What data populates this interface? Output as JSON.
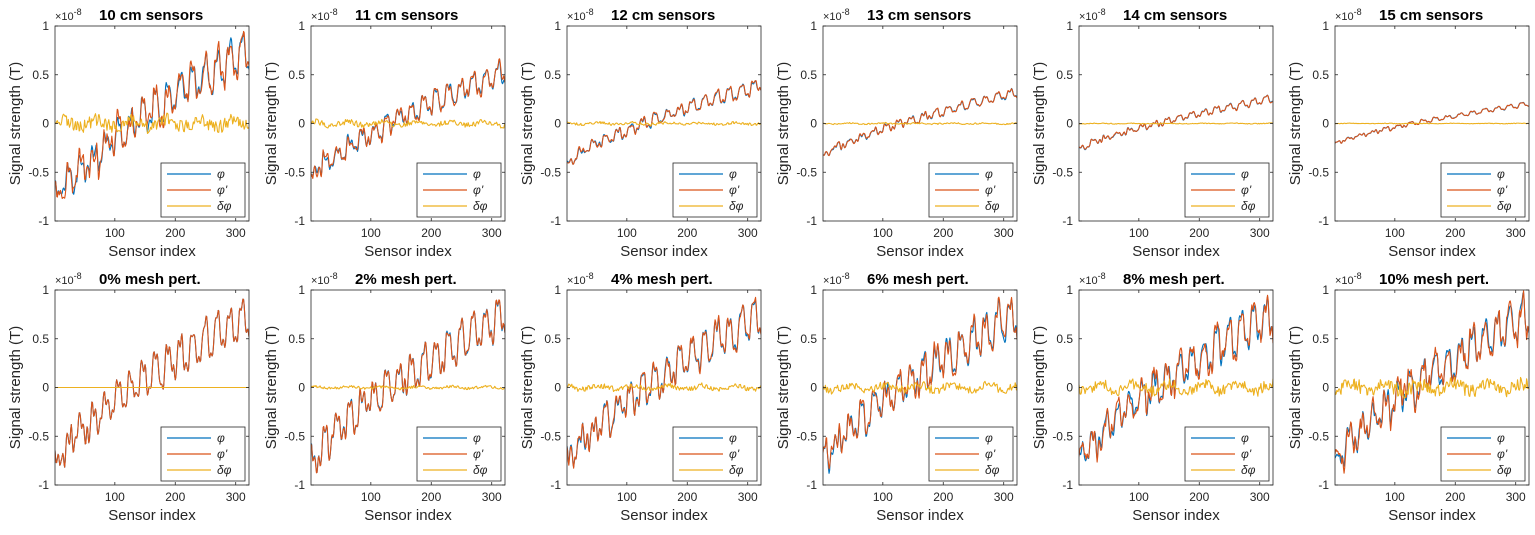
{
  "figure": {
    "x_label": "Sensor index",
    "y_label": "Signal strength (T)",
    "y_multiplier": "×10",
    "y_multiplier_exp": "-8",
    "series_names": [
      "φ",
      "φ'",
      "δφ"
    ],
    "series_colors": [
      "#0072BD",
      "#D95319",
      "#EDB120"
    ]
  },
  "chart_data": [
    {
      "type": "line",
      "title": "10 cm sensors",
      "xlabel": "Sensor index",
      "ylabel": "Signal strength (T)",
      "xlim": [
        1,
        322
      ],
      "ylim": [
        -1,
        1
      ],
      "xticks": [
        100,
        200,
        300
      ],
      "yticks": [
        -1,
        -0.5,
        0,
        0.5,
        1
      ],
      "yticklabels": [
        "-1",
        "-0.5",
        "0",
        "0.5",
        "1"
      ],
      "legend": [
        "φ",
        "φ'",
        "δφ"
      ],
      "legend_position": "lower-right",
      "signal_amplitude": 0.85,
      "oscillation_amplitude": 0.17,
      "residual_amplitude": 0.09
    },
    {
      "type": "line",
      "title": "11 cm sensors",
      "xlabel": "Sensor index",
      "ylabel": "Signal strength (T)",
      "xlim": [
        1,
        322
      ],
      "ylim": [
        -1,
        1
      ],
      "xticks": [
        100,
        200,
        300
      ],
      "yticks": [
        -1,
        -0.5,
        0,
        0.5,
        1
      ],
      "yticklabels": [
        "-1",
        "-0.5",
        "0",
        "0.5",
        "1"
      ],
      "legend": [
        "φ",
        "φ'",
        "δφ"
      ],
      "legend_position": "lower-right",
      "signal_amplitude": 0.6,
      "oscillation_amplitude": 0.1,
      "residual_amplitude": 0.04
    },
    {
      "type": "line",
      "title": "12 cm sensors",
      "xlabel": "Sensor index",
      "ylabel": "Signal strength (T)",
      "xlim": [
        1,
        322
      ],
      "ylim": [
        -1,
        1
      ],
      "xticks": [
        100,
        200,
        300
      ],
      "yticks": [
        -1,
        -0.5,
        0,
        0.5,
        1
      ],
      "yticklabels": [
        "-1",
        "-0.5",
        "0",
        "0.5",
        "1"
      ],
      "legend": [
        "φ",
        "φ'",
        "δφ"
      ],
      "legend_position": "lower-right",
      "signal_amplitude": 0.45,
      "oscillation_amplitude": 0.06,
      "residual_amplitude": 0.02
    },
    {
      "type": "line",
      "title": "13 cm sensors",
      "xlabel": "Sensor index",
      "ylabel": "Signal strength (T)",
      "xlim": [
        1,
        322
      ],
      "ylim": [
        -1,
        1
      ],
      "xticks": [
        100,
        200,
        300
      ],
      "yticks": [
        -1,
        -0.5,
        0,
        0.5,
        1
      ],
      "yticklabels": [
        "-1",
        "-0.5",
        "0",
        "0.5",
        "1"
      ],
      "legend": [
        "φ",
        "φ'",
        "δφ"
      ],
      "legend_position": "lower-right",
      "signal_amplitude": 0.36,
      "oscillation_amplitude": 0.04,
      "residual_amplitude": 0.01
    },
    {
      "type": "line",
      "title": "14 cm sensors",
      "xlabel": "Sensor index",
      "ylabel": "Signal strength (T)",
      "xlim": [
        1,
        322
      ],
      "ylim": [
        -1,
        1
      ],
      "xticks": [
        100,
        200,
        300
      ],
      "yticks": [
        -1,
        -0.5,
        0,
        0.5,
        1
      ],
      "yticklabels": [
        "-1",
        "-0.5",
        "0",
        "0.5",
        "1"
      ],
      "legend": [
        "φ",
        "φ'",
        "δφ"
      ],
      "legend_position": "lower-right",
      "signal_amplitude": 0.29,
      "oscillation_amplitude": 0.03,
      "residual_amplitude": 0.006
    },
    {
      "type": "line",
      "title": "15 cm sensors",
      "xlabel": "Sensor index",
      "ylabel": "Signal strength (T)",
      "xlim": [
        1,
        322
      ],
      "ylim": [
        -1,
        1
      ],
      "xticks": [
        100,
        200,
        300
      ],
      "yticks": [
        -1,
        -0.5,
        0,
        0.5,
        1
      ],
      "yticklabels": [
        "-1",
        "-0.5",
        "0",
        "0.5",
        "1"
      ],
      "legend": [
        "φ",
        "φ'",
        "δφ"
      ],
      "legend_position": "lower-right",
      "signal_amplitude": 0.23,
      "oscillation_amplitude": 0.02,
      "residual_amplitude": 0.004
    },
    {
      "type": "line",
      "title": "0% mesh pert.",
      "xlabel": "Sensor index",
      "ylabel": "Signal strength (T)",
      "xlim": [
        1,
        322
      ],
      "ylim": [
        -1,
        1
      ],
      "xticks": [
        100,
        200,
        300
      ],
      "yticks": [
        -1,
        -0.5,
        0,
        0.5,
        1
      ],
      "yticklabels": [
        "-1",
        "-0.5",
        "0",
        "0.5",
        "1"
      ],
      "legend": [
        "φ",
        "φ'",
        "δφ"
      ],
      "legend_position": "lower-right",
      "signal_amplitude": 0.85,
      "oscillation_amplitude": 0.17,
      "residual_amplitude": 0.0
    },
    {
      "type": "line",
      "title": "2% mesh pert.",
      "xlabel": "Sensor index",
      "ylabel": "Signal strength (T)",
      "xlim": [
        1,
        322
      ],
      "ylim": [
        -1,
        1
      ],
      "xticks": [
        100,
        200,
        300
      ],
      "yticks": [
        -1,
        -0.5,
        0,
        0.5,
        1
      ],
      "yticklabels": [
        "-1",
        "-0.5",
        "0",
        "0.5",
        "1"
      ],
      "legend": [
        "φ",
        "φ'",
        "δφ"
      ],
      "legend_position": "lower-right",
      "signal_amplitude": 0.85,
      "oscillation_amplitude": 0.17,
      "residual_amplitude": 0.02
    },
    {
      "type": "line",
      "title": "4% mesh pert.",
      "xlabel": "Sensor index",
      "ylabel": "Signal strength (T)",
      "xlim": [
        1,
        322
      ],
      "ylim": [
        -1,
        1
      ],
      "xticks": [
        100,
        200,
        300
      ],
      "yticks": [
        -1,
        -0.5,
        0,
        0.5,
        1
      ],
      "yticklabels": [
        "-1",
        "-0.5",
        "0",
        "0.5",
        "1"
      ],
      "legend": [
        "φ",
        "φ'",
        "δφ"
      ],
      "legend_position": "lower-right",
      "signal_amplitude": 0.85,
      "oscillation_amplitude": 0.17,
      "residual_amplitude": 0.04
    },
    {
      "type": "line",
      "title": "6% mesh pert.",
      "xlabel": "Sensor index",
      "ylabel": "Signal strength (T)",
      "xlim": [
        1,
        322
      ],
      "ylim": [
        -1,
        1
      ],
      "xticks": [
        100,
        200,
        300
      ],
      "yticks": [
        -1,
        -0.5,
        0,
        0.5,
        1
      ],
      "yticklabels": [
        "-1",
        "-0.5",
        "0",
        "0.5",
        "1"
      ],
      "legend": [
        "φ",
        "φ'",
        "δφ"
      ],
      "legend_position": "lower-right",
      "signal_amplitude": 0.85,
      "oscillation_amplitude": 0.17,
      "residual_amplitude": 0.06
    },
    {
      "type": "line",
      "title": "8% mesh pert.",
      "xlabel": "Sensor index",
      "ylabel": "Signal strength (T)",
      "xlim": [
        1,
        322
      ],
      "ylim": [
        -1,
        1
      ],
      "xticks": [
        100,
        200,
        300
      ],
      "yticks": [
        -1,
        -0.5,
        0,
        0.5,
        1
      ],
      "yticklabels": [
        "-1",
        "-0.5",
        "0",
        "0.5",
        "1"
      ],
      "legend": [
        "φ",
        "φ'",
        "δφ"
      ],
      "legend_position": "lower-right",
      "signal_amplitude": 0.85,
      "oscillation_amplitude": 0.17,
      "residual_amplitude": 0.08
    },
    {
      "type": "line",
      "title": "10% mesh pert.",
      "xlabel": "Sensor index",
      "ylabel": "Signal strength (T)",
      "xlim": [
        1,
        322
      ],
      "ylim": [
        -1,
        1
      ],
      "xticks": [
        100,
        200,
        300
      ],
      "yticks": [
        -1,
        -0.5,
        0,
        0.5,
        1
      ],
      "yticklabels": [
        "-1",
        "-0.5",
        "0",
        "0.5",
        "1"
      ],
      "legend": [
        "φ",
        "φ'",
        "δφ"
      ],
      "legend_position": "lower-right",
      "signal_amplitude": 0.85,
      "oscillation_amplitude": 0.17,
      "residual_amplitude": 0.1
    }
  ]
}
